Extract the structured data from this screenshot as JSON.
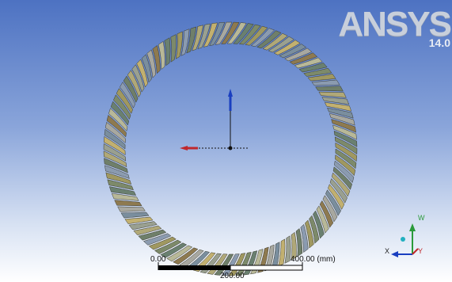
{
  "logo": {
    "brand": "ANSYS",
    "version": "14.0"
  },
  "scale_bar": {
    "start_label": "0.00",
    "mid_label": "200.00",
    "end_label": "400.00 (mm)"
  },
  "triad": {
    "x_label": "X",
    "y_label": "Y",
    "z_label": "W"
  },
  "colors": {
    "background_top": "#4d72c2",
    "background_bottom": "#ffffff",
    "axis_red": "#c0282c",
    "axis_blue": "#1a3fc0",
    "axis_green": "#2a9a3a",
    "triad_center": "#22b0c0"
  },
  "icons": {
    "model": "gear-ring-model",
    "origin_axes": "coordinate-axes-icon",
    "triad": "triad-icon"
  }
}
